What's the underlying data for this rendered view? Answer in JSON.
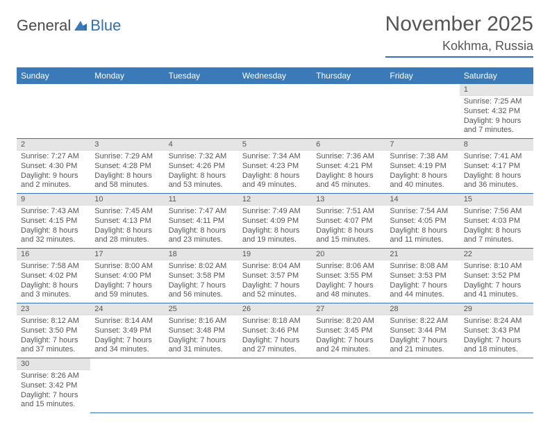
{
  "logo": {
    "text_general": "General",
    "text_blue": "Blue"
  },
  "header": {
    "month": "November 2025",
    "location": "Kokhma, Russia"
  },
  "weekdays": [
    "Sunday",
    "Monday",
    "Tuesday",
    "Wednesday",
    "Thursday",
    "Friday",
    "Saturday"
  ],
  "colors": {
    "header_bg": "#3a7ab8",
    "border": "#2f6fb3",
    "daynum_bg": "#e5e5e5",
    "text": "#555555"
  },
  "days": [
    null,
    null,
    null,
    null,
    null,
    null,
    {
      "n": "1",
      "sunrise": "Sunrise: 7:25 AM",
      "sunset": "Sunset: 4:32 PM",
      "day1": "Daylight: 9 hours",
      "day2": "and 7 minutes."
    },
    {
      "n": "2",
      "sunrise": "Sunrise: 7:27 AM",
      "sunset": "Sunset: 4:30 PM",
      "day1": "Daylight: 9 hours",
      "day2": "and 2 minutes."
    },
    {
      "n": "3",
      "sunrise": "Sunrise: 7:29 AM",
      "sunset": "Sunset: 4:28 PM",
      "day1": "Daylight: 8 hours",
      "day2": "and 58 minutes."
    },
    {
      "n": "4",
      "sunrise": "Sunrise: 7:32 AM",
      "sunset": "Sunset: 4:26 PM",
      "day1": "Daylight: 8 hours",
      "day2": "and 53 minutes."
    },
    {
      "n": "5",
      "sunrise": "Sunrise: 7:34 AM",
      "sunset": "Sunset: 4:23 PM",
      "day1": "Daylight: 8 hours",
      "day2": "and 49 minutes."
    },
    {
      "n": "6",
      "sunrise": "Sunrise: 7:36 AM",
      "sunset": "Sunset: 4:21 PM",
      "day1": "Daylight: 8 hours",
      "day2": "and 45 minutes."
    },
    {
      "n": "7",
      "sunrise": "Sunrise: 7:38 AM",
      "sunset": "Sunset: 4:19 PM",
      "day1": "Daylight: 8 hours",
      "day2": "and 40 minutes."
    },
    {
      "n": "8",
      "sunrise": "Sunrise: 7:41 AM",
      "sunset": "Sunset: 4:17 PM",
      "day1": "Daylight: 8 hours",
      "day2": "and 36 minutes."
    },
    {
      "n": "9",
      "sunrise": "Sunrise: 7:43 AM",
      "sunset": "Sunset: 4:15 PM",
      "day1": "Daylight: 8 hours",
      "day2": "and 32 minutes."
    },
    {
      "n": "10",
      "sunrise": "Sunrise: 7:45 AM",
      "sunset": "Sunset: 4:13 PM",
      "day1": "Daylight: 8 hours",
      "day2": "and 28 minutes."
    },
    {
      "n": "11",
      "sunrise": "Sunrise: 7:47 AM",
      "sunset": "Sunset: 4:11 PM",
      "day1": "Daylight: 8 hours",
      "day2": "and 23 minutes."
    },
    {
      "n": "12",
      "sunrise": "Sunrise: 7:49 AM",
      "sunset": "Sunset: 4:09 PM",
      "day1": "Daylight: 8 hours",
      "day2": "and 19 minutes."
    },
    {
      "n": "13",
      "sunrise": "Sunrise: 7:51 AM",
      "sunset": "Sunset: 4:07 PM",
      "day1": "Daylight: 8 hours",
      "day2": "and 15 minutes."
    },
    {
      "n": "14",
      "sunrise": "Sunrise: 7:54 AM",
      "sunset": "Sunset: 4:05 PM",
      "day1": "Daylight: 8 hours",
      "day2": "and 11 minutes."
    },
    {
      "n": "15",
      "sunrise": "Sunrise: 7:56 AM",
      "sunset": "Sunset: 4:03 PM",
      "day1": "Daylight: 8 hours",
      "day2": "and 7 minutes."
    },
    {
      "n": "16",
      "sunrise": "Sunrise: 7:58 AM",
      "sunset": "Sunset: 4:02 PM",
      "day1": "Daylight: 8 hours",
      "day2": "and 3 minutes."
    },
    {
      "n": "17",
      "sunrise": "Sunrise: 8:00 AM",
      "sunset": "Sunset: 4:00 PM",
      "day1": "Daylight: 7 hours",
      "day2": "and 59 minutes."
    },
    {
      "n": "18",
      "sunrise": "Sunrise: 8:02 AM",
      "sunset": "Sunset: 3:58 PM",
      "day1": "Daylight: 7 hours",
      "day2": "and 56 minutes."
    },
    {
      "n": "19",
      "sunrise": "Sunrise: 8:04 AM",
      "sunset": "Sunset: 3:57 PM",
      "day1": "Daylight: 7 hours",
      "day2": "and 52 minutes."
    },
    {
      "n": "20",
      "sunrise": "Sunrise: 8:06 AM",
      "sunset": "Sunset: 3:55 PM",
      "day1": "Daylight: 7 hours",
      "day2": "and 48 minutes."
    },
    {
      "n": "21",
      "sunrise": "Sunrise: 8:08 AM",
      "sunset": "Sunset: 3:53 PM",
      "day1": "Daylight: 7 hours",
      "day2": "and 44 minutes."
    },
    {
      "n": "22",
      "sunrise": "Sunrise: 8:10 AM",
      "sunset": "Sunset: 3:52 PM",
      "day1": "Daylight: 7 hours",
      "day2": "and 41 minutes."
    },
    {
      "n": "23",
      "sunrise": "Sunrise: 8:12 AM",
      "sunset": "Sunset: 3:50 PM",
      "day1": "Daylight: 7 hours",
      "day2": "and 37 minutes."
    },
    {
      "n": "24",
      "sunrise": "Sunrise: 8:14 AM",
      "sunset": "Sunset: 3:49 PM",
      "day1": "Daylight: 7 hours",
      "day2": "and 34 minutes."
    },
    {
      "n": "25",
      "sunrise": "Sunrise: 8:16 AM",
      "sunset": "Sunset: 3:48 PM",
      "day1": "Daylight: 7 hours",
      "day2": "and 31 minutes."
    },
    {
      "n": "26",
      "sunrise": "Sunrise: 8:18 AM",
      "sunset": "Sunset: 3:46 PM",
      "day1": "Daylight: 7 hours",
      "day2": "and 27 minutes."
    },
    {
      "n": "27",
      "sunrise": "Sunrise: 8:20 AM",
      "sunset": "Sunset: 3:45 PM",
      "day1": "Daylight: 7 hours",
      "day2": "and 24 minutes."
    },
    {
      "n": "28",
      "sunrise": "Sunrise: 8:22 AM",
      "sunset": "Sunset: 3:44 PM",
      "day1": "Daylight: 7 hours",
      "day2": "and 21 minutes."
    },
    {
      "n": "29",
      "sunrise": "Sunrise: 8:24 AM",
      "sunset": "Sunset: 3:43 PM",
      "day1": "Daylight: 7 hours",
      "day2": "and 18 minutes."
    },
    {
      "n": "30",
      "sunrise": "Sunrise: 8:26 AM",
      "sunset": "Sunset: 3:42 PM",
      "day1": "Daylight: 7 hours",
      "day2": "and 15 minutes."
    },
    null,
    null,
    null,
    null,
    null,
    null
  ]
}
